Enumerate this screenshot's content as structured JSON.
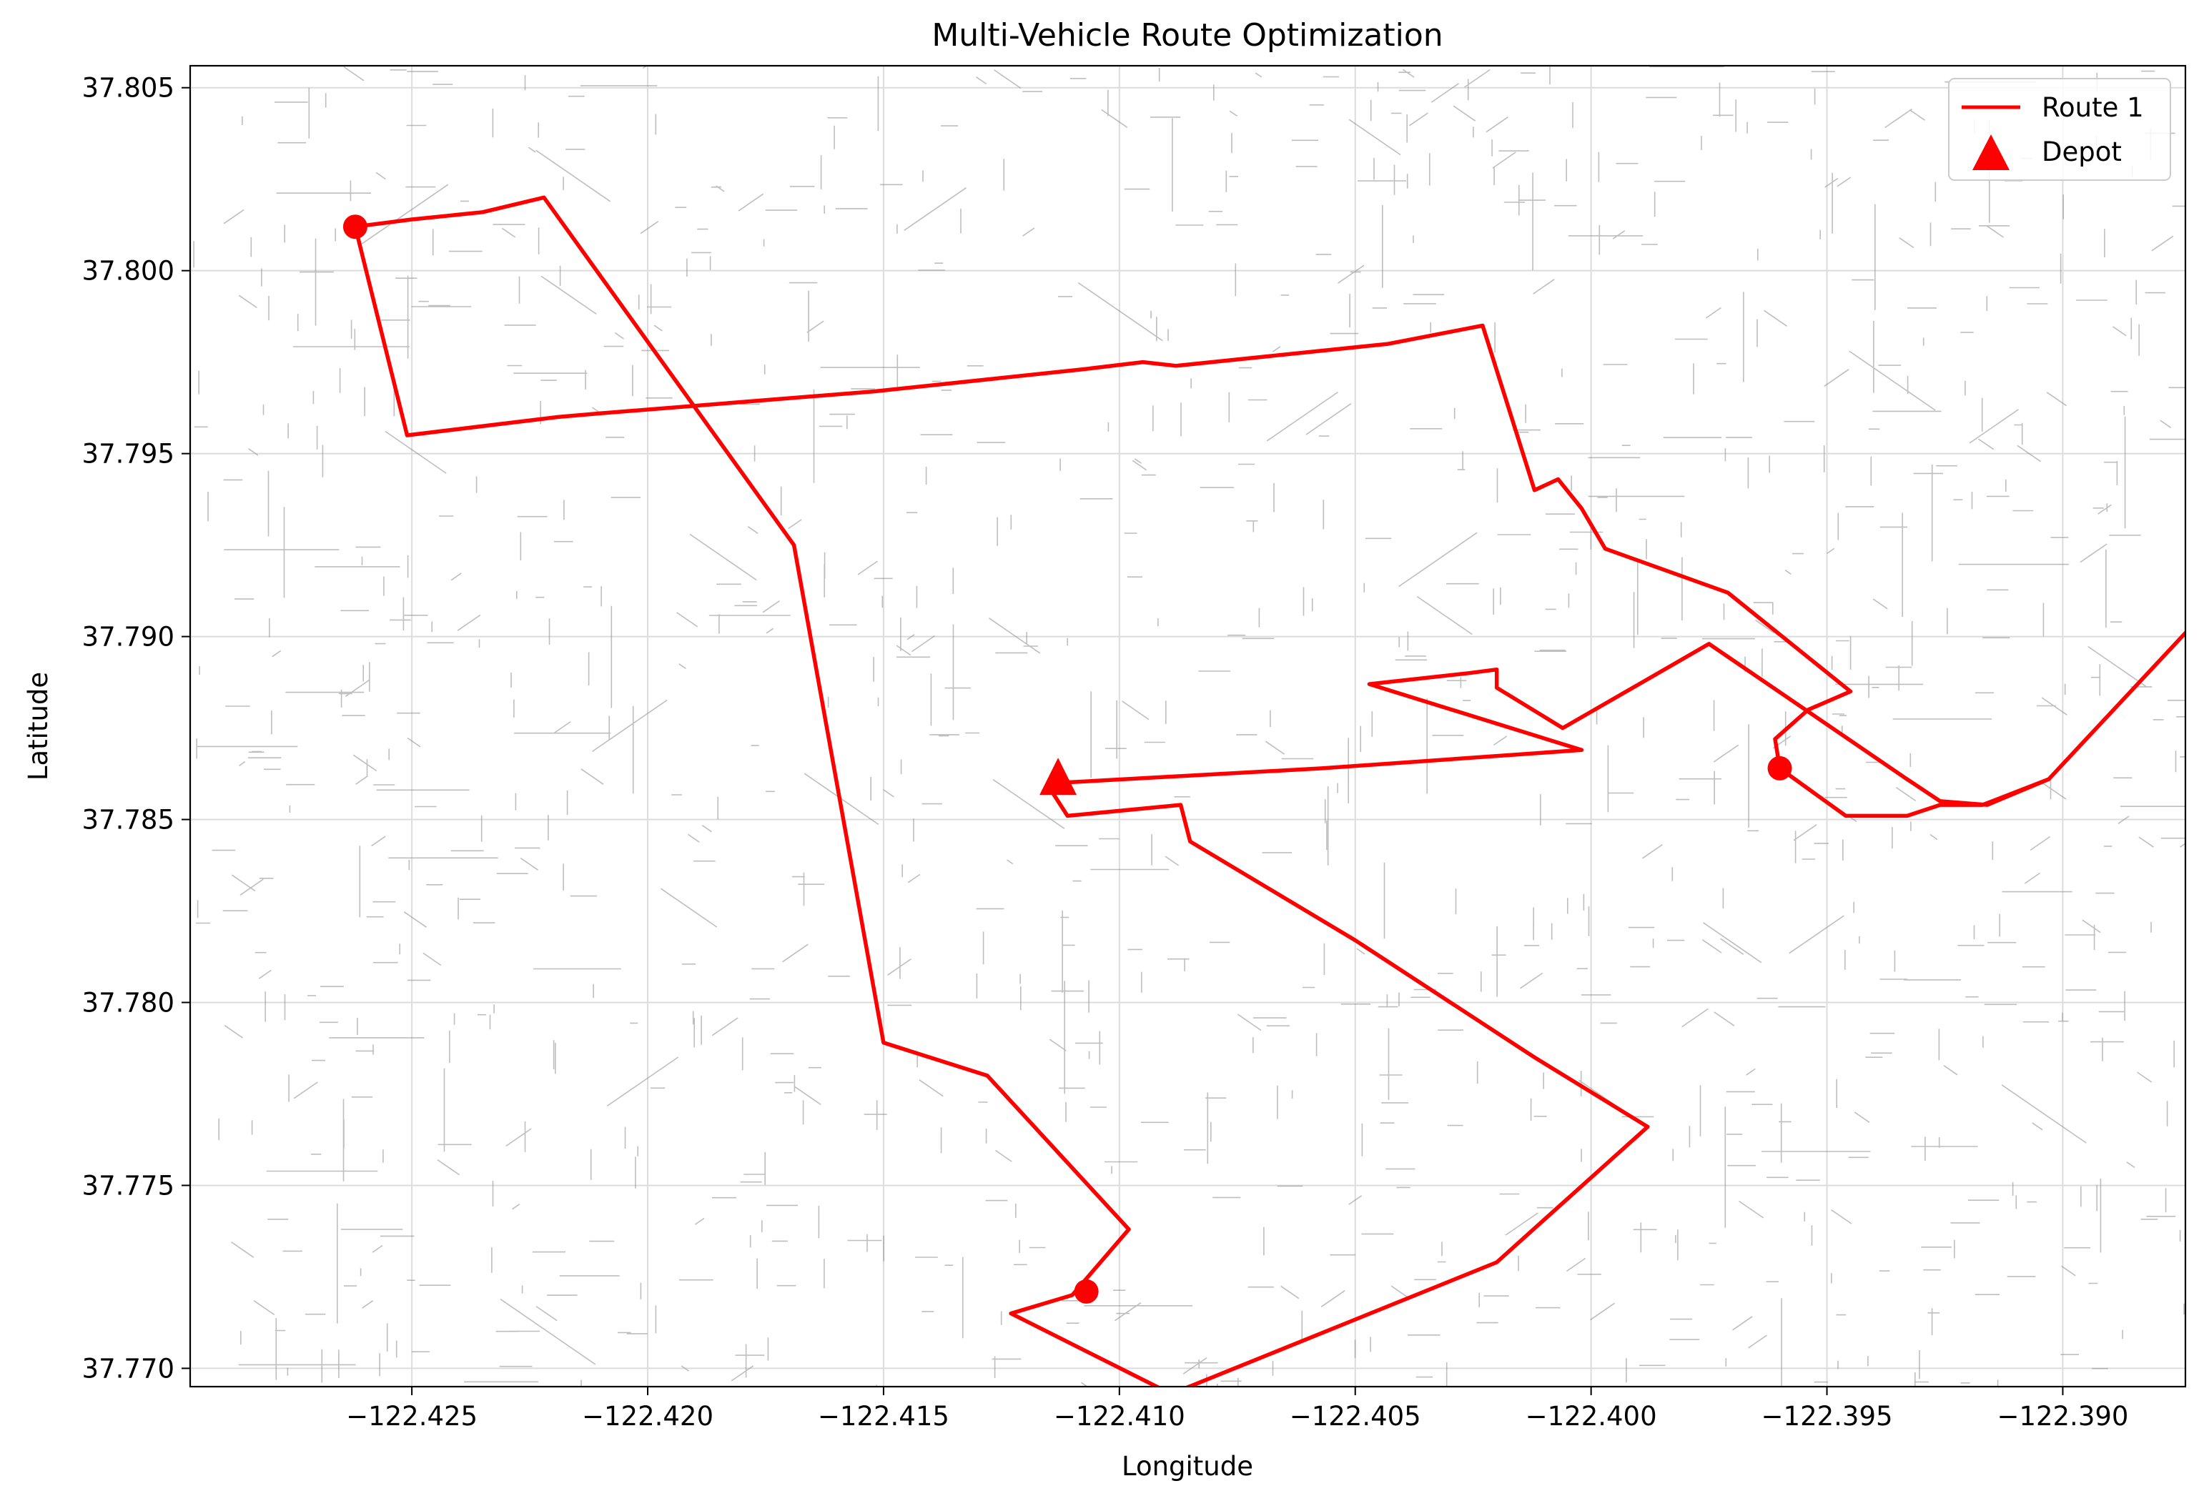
{
  "chart_data": {
    "type": "line",
    "title": "Multi-Vehicle Route Optimization",
    "xlabel": "Longitude",
    "ylabel": "Latitude",
    "xlim": [
      -122.4297,
      -122.3874
    ],
    "ylim": [
      37.7695,
      37.8056
    ],
    "x_ticks": [
      -122.425,
      -122.42,
      -122.415,
      -122.41,
      -122.405,
      -122.4,
      -122.395,
      -122.39
    ],
    "x_tick_labels": [
      "−122.425",
      "−122.420",
      "−122.415",
      "−122.410",
      "−122.405",
      "−122.400",
      "−122.395",
      "−122.390"
    ],
    "y_ticks": [
      37.77,
      37.775,
      37.78,
      37.785,
      37.79,
      37.795,
      37.8,
      37.805
    ],
    "y_tick_labels": [
      "37.770",
      "37.775",
      "37.780",
      "37.785",
      "37.790",
      "37.795",
      "37.800",
      "37.805"
    ],
    "grid": true,
    "legend_position": "top-right",
    "colors": {
      "route": "#ff0000",
      "network": "#888888",
      "grid": "#dcdcdc"
    },
    "series": [
      {
        "name": "Route 1",
        "color": "#ff0000",
        "points": [
          [
            -122.4113,
            37.786
          ],
          [
            -122.4113,
            37.786
          ],
          [
            -122.4057,
            37.7864
          ],
          [
            -122.4002,
            37.7869
          ],
          [
            -122.4047,
            37.7887
          ],
          [
            -122.4026,
            37.789
          ],
          [
            -122.402,
            37.7891
          ],
          [
            -122.402,
            37.7886
          ],
          [
            -122.4006,
            37.7875
          ],
          [
            -122.3975,
            37.7898
          ],
          [
            -122.3933,
            37.7861
          ],
          [
            -122.3926,
            37.7855
          ],
          [
            -122.3916,
            37.7854
          ],
          [
            -122.3903,
            37.7861
          ],
          [
            -122.3874,
            37.7901
          ],
          [
            -122.3903,
            37.7861
          ],
          [
            -122.3917,
            37.7854
          ],
          [
            -122.3926,
            37.7854
          ],
          [
            -122.3933,
            37.7851
          ],
          [
            -122.3946,
            37.7851
          ],
          [
            -122.396,
            37.7864
          ],
          [
            -122.396,
            37.7864
          ],
          [
            -122.3961,
            37.7872
          ],
          [
            -122.3954,
            37.788
          ],
          [
            -122.3945,
            37.7885
          ],
          [
            -122.3971,
            37.7912
          ],
          [
            -122.3997,
            37.7924
          ],
          [
            -122.4002,
            37.7935
          ],
          [
            -122.4007,
            37.7943
          ],
          [
            -122.4012,
            37.794
          ],
          [
            -122.4023,
            37.7985
          ],
          [
            -122.4043,
            37.798
          ],
          [
            -122.4088,
            37.7974
          ],
          [
            -122.4095,
            37.7975
          ],
          [
            -122.4108,
            37.7973
          ],
          [
            -122.4152,
            37.7967
          ],
          [
            -122.421,
            37.7961
          ],
          [
            -122.4219,
            37.796
          ],
          [
            -122.4251,
            37.7955
          ],
          [
            -122.4262,
            37.8012
          ],
          [
            -122.4262,
            37.8012
          ],
          [
            -122.425,
            37.8014
          ],
          [
            -122.4235,
            37.8016
          ],
          [
            -122.4222,
            37.802
          ],
          [
            -122.4169,
            37.7925
          ],
          [
            -122.415,
            37.7789
          ],
          [
            -122.4128,
            37.778
          ],
          [
            -122.4098,
            37.7738
          ],
          [
            -122.411,
            37.772
          ],
          [
            -122.411,
            37.772
          ],
          [
            -122.4123,
            37.7715
          ],
          [
            -122.4089,
            37.7693
          ],
          [
            -122.402,
            37.7729
          ],
          [
            -122.3988,
            37.7766
          ],
          [
            -122.4012,
            37.7785
          ],
          [
            -122.405,
            37.7817
          ],
          [
            -122.4085,
            37.7844
          ],
          [
            -122.4087,
            37.7854
          ],
          [
            -122.4111,
            37.7851
          ],
          [
            -122.4115,
            37.7859
          ],
          [
            -122.4113,
            37.786
          ]
        ]
      }
    ],
    "stops": [
      [
        -122.4262,
        37.8012
      ],
      [
        -122.396,
        37.7864
      ],
      [
        -122.4107,
        37.7721
      ]
    ],
    "depot": {
      "name": "Depot",
      "point": [
        -122.4113,
        37.7861
      ]
    },
    "legend": [
      {
        "label": "Route 1",
        "marker": "line"
      },
      {
        "label": "Depot",
        "marker": "triangle"
      }
    ]
  }
}
